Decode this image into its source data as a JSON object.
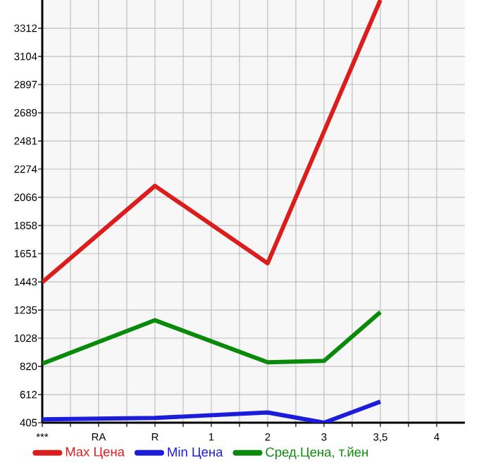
{
  "chart_data": {
    "type": "line",
    "categories": [
      "***",
      "RA",
      "R",
      "1",
      "2",
      "3",
      "3,5",
      "4"
    ],
    "series": [
      {
        "name": "Max Цена",
        "color": "#dd1c1c",
        "values": [
          1440,
          null,
          2150,
          null,
          1580,
          null,
          3520,
          null
        ]
      },
      {
        "name": "Min Цена",
        "color": "#1c1cdd",
        "values": [
          430,
          null,
          440,
          null,
          480,
          405,
          560,
          null
        ]
      },
      {
        "name": "Сред.Цена, т.йен",
        "color": "#0a8a0a",
        "values": [
          840,
          null,
          1160,
          null,
          850,
          860,
          1220,
          null
        ]
      }
    ],
    "ylim": [
      405,
      3520
    ],
    "yticks": [
      405,
      612,
      820,
      1028,
      1235,
      1443,
      1651,
      1858,
      2066,
      2274,
      2481,
      2689,
      2897,
      3104,
      3312
    ],
    "grid": true,
    "legend": "bottom",
    "marker": "none",
    "line_style": "solid"
  }
}
